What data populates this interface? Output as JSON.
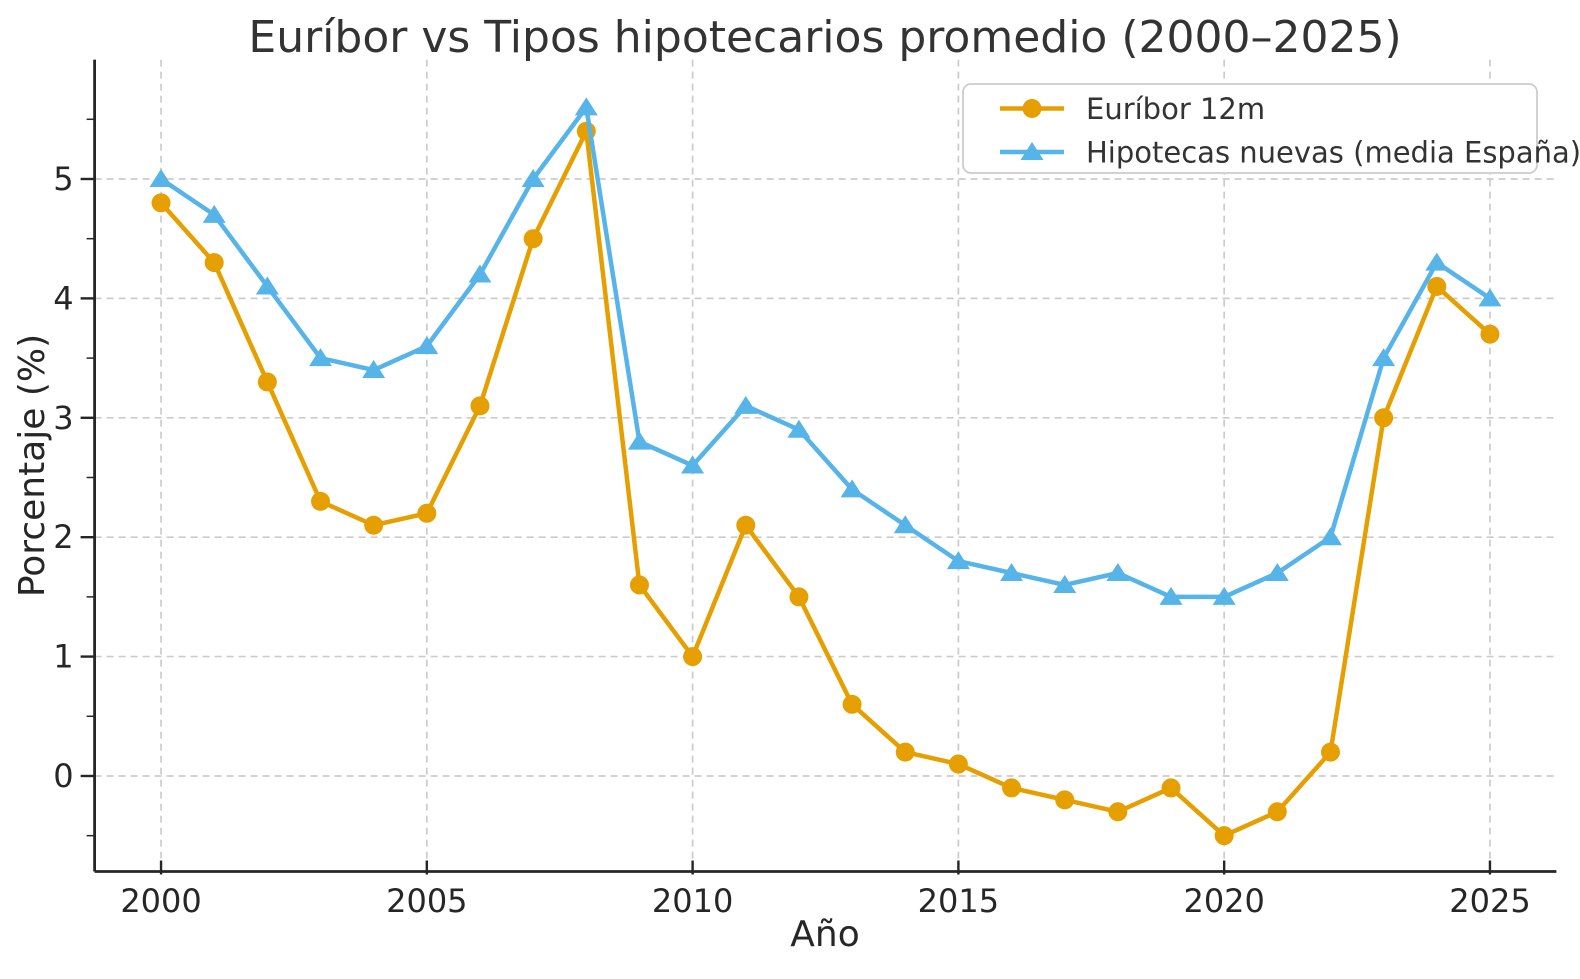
{
  "figure": {
    "background": "#ffffff"
  },
  "chart_data": {
    "type": "line",
    "title": "Euríbor vs Tipos hipotecarios promedio (2000–2025)",
    "xlabel": "Año",
    "ylabel": "Porcentaje (%)",
    "x": [
      2000,
      2001,
      2002,
      2003,
      2004,
      2005,
      2006,
      2007,
      2008,
      2009,
      2010,
      2011,
      2012,
      2013,
      2014,
      2015,
      2016,
      2017,
      2018,
      2019,
      2020,
      2021,
      2022,
      2023,
      2024,
      2025
    ],
    "series": [
      {
        "name": "Euríbor 12m",
        "color": "#E69F00",
        "marker": "circle",
        "values": [
          4.8,
          4.3,
          3.3,
          2.3,
          2.1,
          2.2,
          3.1,
          4.5,
          5.4,
          1.6,
          1.0,
          2.1,
          1.5,
          0.6,
          0.2,
          0.1,
          -0.1,
          -0.2,
          -0.3,
          -0.1,
          -0.5,
          -0.3,
          0.2,
          3.0,
          4.1,
          3.7
        ]
      },
      {
        "name": "Hipotecas nuevas (media España)",
        "color": "#56B4E9",
        "marker": "triangle",
        "values": [
          5.0,
          4.7,
          4.1,
          3.5,
          3.4,
          3.6,
          4.2,
          5.0,
          5.6,
          2.8,
          2.6,
          3.1,
          2.9,
          2.4,
          2.1,
          1.8,
          1.7,
          1.6,
          1.7,
          1.5,
          1.5,
          1.7,
          2.0,
          3.5,
          4.3,
          4.0
        ]
      }
    ],
    "x_ticks": [
      2000,
      2005,
      2010,
      2015,
      2020,
      2025
    ],
    "y_ticks": [
      0,
      1,
      2,
      3,
      4,
      5
    ],
    "y_minor_step": 0.5,
    "xlim": [
      1998.75,
      2026.25
    ],
    "ylim": [
      -0.8,
      6.0
    ],
    "grid": "dashed",
    "legend_position": "upper right",
    "colors": {
      "grid": "#CCCCCC",
      "spine": "#262626",
      "tick_label": "#262626",
      "title": "#333333",
      "legend_border": "#CCCCCC",
      "legend_bg": "#FFFFFF"
    }
  }
}
